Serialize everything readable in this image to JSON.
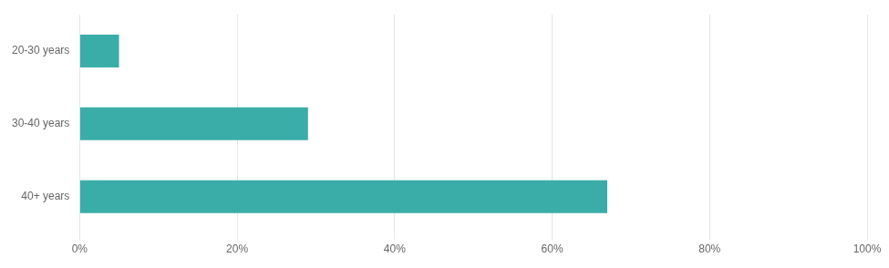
{
  "chart_data": {
    "type": "bar",
    "orientation": "horizontal",
    "categories": [
      "20-30 years",
      "30-40 years",
      "40+ years"
    ],
    "values": [
      5,
      29,
      67
    ],
    "color": "#3aada8",
    "xlim": [
      0,
      100
    ],
    "xticks": [
      {
        "value": 0,
        "label": "0%"
      },
      {
        "value": 20,
        "label": "20%"
      },
      {
        "value": 40,
        "label": "40%"
      },
      {
        "value": 60,
        "label": "60%"
      },
      {
        "value": 80,
        "label": "80%"
      },
      {
        "value": 100,
        "label": "100%"
      }
    ],
    "grid": "x"
  }
}
